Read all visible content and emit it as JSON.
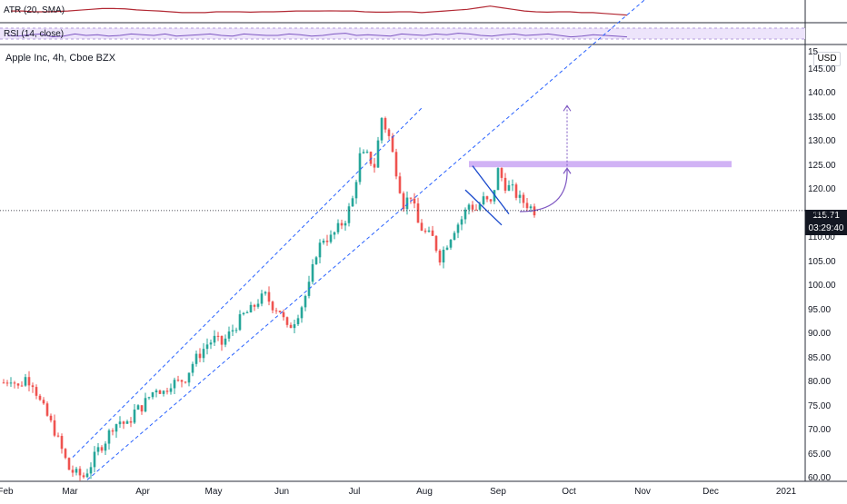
{
  "indicators": {
    "atr_label": "ATR (20, SMA)",
    "rsi_label": "RSI (14, close)"
  },
  "chart_title": "Apple Inc, 4h, Cboe BZX",
  "currency": "USD",
  "price_tag": "115.71",
  "countdown_tag": "03:29:40",
  "colors": {
    "up": "#26a69a",
    "down": "#ef5350",
    "channel": "#2962ff",
    "resistance_zone": "#d1b3f5",
    "atr_line": "#b22833",
    "rsi_line": "#7e57c2",
    "rsi_band": "#ede4fb"
  },
  "chart_data": {
    "type": "candlestick",
    "title": "Apple Inc, 4h, Cboe BZX",
    "x_ticks": [
      "Feb",
      "Mar",
      "Apr",
      "May",
      "Jun",
      "Jul",
      "Aug",
      "Sep",
      "Oct",
      "Nov",
      "Dec",
      "2021"
    ],
    "y_ticks": [
      "60.00",
      "65.00",
      "70.00",
      "75.00",
      "80.00",
      "85.00",
      "90.00",
      "95.00",
      "100.00",
      "105.00",
      "110.00",
      "115.00",
      "120.00",
      "125.00",
      "130.00",
      "135.00",
      "140.00",
      "145.00"
    ],
    "y_top_partial": "15",
    "ylim": [
      59.5,
      150
    ],
    "current_price": 115.71,
    "price_path": [
      [
        0,
        80
      ],
      [
        1,
        81
      ],
      [
        2,
        79
      ],
      [
        3,
        81
      ],
      [
        4,
        80
      ],
      [
        5,
        76
      ],
      [
        6,
        73
      ],
      [
        7,
        70
      ],
      [
        8,
        66
      ],
      [
        9,
        62
      ],
      [
        10,
        61
      ],
      [
        11,
        60.5
      ],
      [
        12,
        63
      ],
      [
        13,
        66
      ],
      [
        14,
        68
      ],
      [
        15,
        71
      ],
      [
        16,
        72
      ],
      [
        17,
        71
      ],
      [
        18,
        74
      ],
      [
        19,
        75
      ],
      [
        20,
        77
      ],
      [
        21,
        79
      ],
      [
        22,
        78
      ],
      [
        23,
        80
      ],
      [
        24,
        80
      ],
      [
        25,
        81
      ],
      [
        26,
        84
      ],
      [
        27,
        86
      ],
      [
        28,
        88
      ],
      [
        29,
        89
      ],
      [
        30,
        88
      ],
      [
        31,
        90
      ],
      [
        32,
        92
      ],
      [
        33,
        94
      ],
      [
        34,
        95
      ],
      [
        35,
        97
      ],
      [
        36,
        98
      ],
      [
        37,
        96
      ],
      [
        38,
        95
      ],
      [
        39,
        91
      ],
      [
        40,
        93
      ],
      [
        41,
        96
      ],
      [
        42,
        100
      ],
      [
        43,
        107
      ],
      [
        44,
        110
      ],
      [
        45,
        110
      ],
      [
        46,
        112
      ],
      [
        47,
        114
      ],
      [
        48,
        118
      ],
      [
        49,
        127
      ],
      [
        50,
        127
      ],
      [
        51,
        125
      ],
      [
        52,
        135
      ],
      [
        53,
        131
      ],
      [
        54,
        124
      ],
      [
        55,
        117
      ],
      [
        56,
        119
      ],
      [
        57,
        113
      ],
      [
        58,
        111
      ],
      [
        59,
        110
      ],
      [
        60,
        106
      ],
      [
        61,
        109
      ],
      [
        62,
        112
      ],
      [
        63,
        114
      ],
      [
        64,
        117
      ],
      [
        65,
        116
      ],
      [
        66,
        118
      ],
      [
        67,
        117
      ],
      [
        68,
        124
      ],
      [
        69,
        121
      ],
      [
        70,
        120
      ],
      [
        71,
        118
      ],
      [
        72,
        117
      ],
      [
        73,
        115.7
      ]
    ],
    "atr": [
      0.55,
      0.55,
      0.5,
      0.5,
      0.52,
      0.55,
      0.6,
      0.65,
      0.7,
      0.7,
      0.68,
      0.62,
      0.58,
      0.55,
      0.5,
      0.45,
      0.45,
      0.45,
      0.5,
      0.5,
      0.5,
      0.48,
      0.5,
      0.5,
      0.52,
      0.55,
      0.55,
      0.55,
      0.56,
      0.55,
      0.55,
      0.5,
      0.48,
      0.48,
      0.5,
      0.5,
      0.45,
      0.5,
      0.55,
      0.6,
      0.65,
      0.75,
      0.85,
      0.75,
      0.65,
      0.55,
      0.5,
      0.48,
      0.5,
      0.5,
      0.45,
      0.45,
      0.4,
      0.35,
      0.3
    ],
    "rsi": [
      0.5,
      0.45,
      0.55,
      0.6,
      0.4,
      0.45,
      0.6,
      0.5,
      0.55,
      0.45,
      0.5,
      0.6,
      0.55,
      0.5,
      0.6,
      0.45,
      0.5,
      0.55,
      0.6,
      0.5,
      0.45,
      0.6,
      0.55,
      0.5,
      0.5,
      0.6,
      0.55,
      0.45,
      0.5,
      0.6,
      0.65,
      0.5,
      0.55,
      0.5,
      0.45,
      0.6,
      0.55,
      0.5,
      0.6,
      0.55,
      0.65,
      0.6,
      0.5,
      0.45,
      0.55,
      0.6,
      0.5,
      0.55,
      0.6,
      0.5,
      0.4,
      0.45,
      0.55,
      0.5,
      0.45,
      0.4
    ],
    "channel_upper": [
      [
        10,
        64.5
      ],
      [
        58,
        137
      ]
    ],
    "channel_lower": [
      [
        12,
        59.8
      ],
      [
        62,
        124.8
      ]
    ],
    "resistance_zone": [
      124.7,
      126
    ],
    "flag_upper": [
      [
        65,
        125
      ],
      [
        70,
        115
      ]
    ],
    "flag_lower": [
      [
        64,
        120
      ],
      [
        69,
        112.7
      ]
    ],
    "projection_arrow_to": 137.5
  }
}
